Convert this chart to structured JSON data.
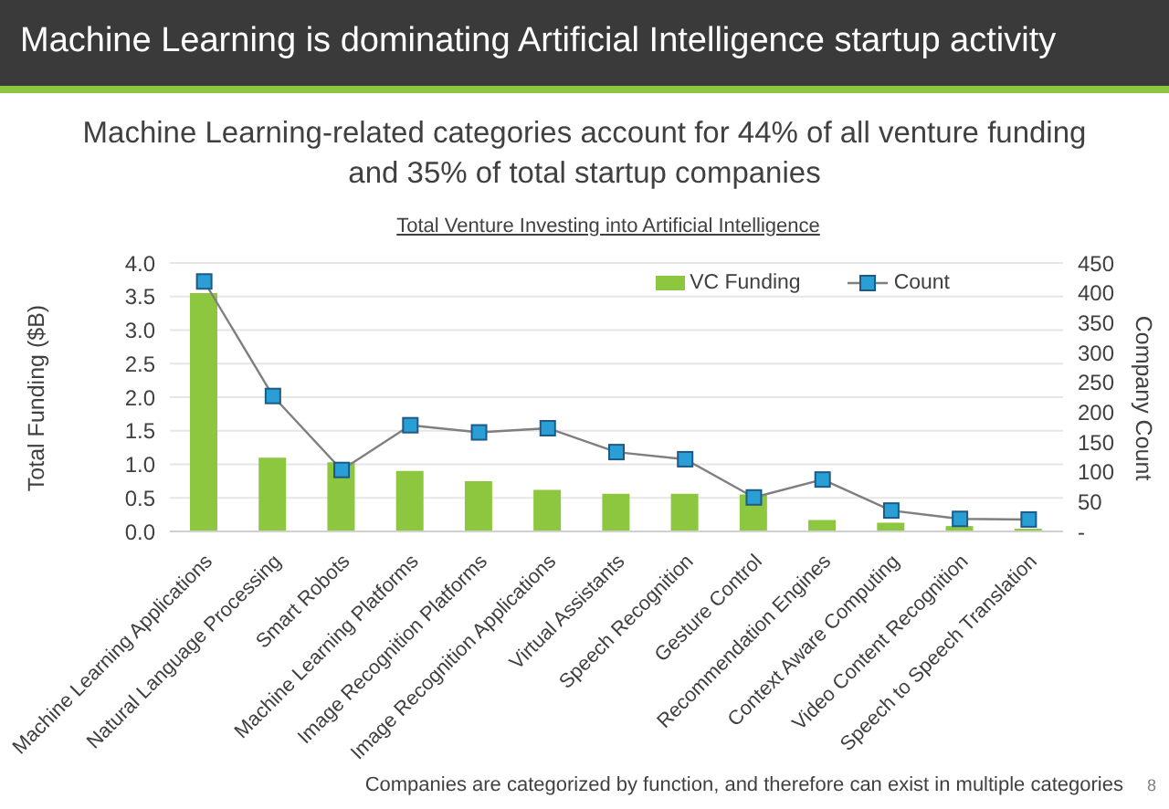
{
  "chart_data": {
    "type": "bar",
    "title": "Machine Learning is dominating Artificial Intelligence startup activity",
    "subtitle": "Machine Learning-related categories account for 44% of all venture funding and 35% of total startup companies",
    "ylabel": "Total Funding ($B)",
    "y2label": "Company Count",
    "annotations": [
      "Total Venture Investing into Artificial Intelligence",
      "Companies are categorized by function, and therefore can exist in multiple categories",
      "8"
    ],
    "categories": [
      "Machine Learning Applications",
      "Natural Language Processing",
      "Smart Robots",
      "Machine Learning Platforms",
      "Image Recognition Platforms",
      "Image Recognition Applications",
      "Virtual Assistants",
      "Speech Recognition",
      "Gesture Control",
      "Recommendation Engines",
      "Context Aware Computing",
      "Video Content Recognition",
      "Speech to Speech Translation"
    ],
    "series": [
      {
        "name": "VC Funding",
        "type": "bar",
        "color": "#8dc63f",
        "values": [
          3.55,
          1.1,
          1.03,
          0.9,
          0.75,
          0.62,
          0.56,
          0.56,
          0.55,
          0.17,
          0.13,
          0.08,
          0.04
        ]
      },
      {
        "name": "Count",
        "type": "line",
        "axis": "y2",
        "color": "#2a9fd6",
        "values": [
          419,
          227,
          103,
          178,
          166,
          173,
          133,
          121,
          57,
          87,
          35,
          21,
          20
        ]
      }
    ],
    "ylim": [
      0,
      4
    ],
    "yticks": [
      {
        "value": 0,
        "label": "0.0"
      },
      0.5,
      {
        "value": 1,
        "label": "1.0"
      },
      1.5,
      {
        "value": 2,
        "label": "2.0"
      },
      2.5,
      {
        "value": 3,
        "label": "3.0"
      },
      3.5,
      {
        "value": 4,
        "label": "4.0"
      }
    ],
    "y2lim": [
      0,
      450
    ],
    "y2ticks": [
      {
        "value": 0,
        "label": "-"
      },
      50,
      100,
      150,
      200,
      250,
      300,
      350,
      400,
      450
    ],
    "grid": "y",
    "legend": "top right",
    "marker": "square"
  }
}
